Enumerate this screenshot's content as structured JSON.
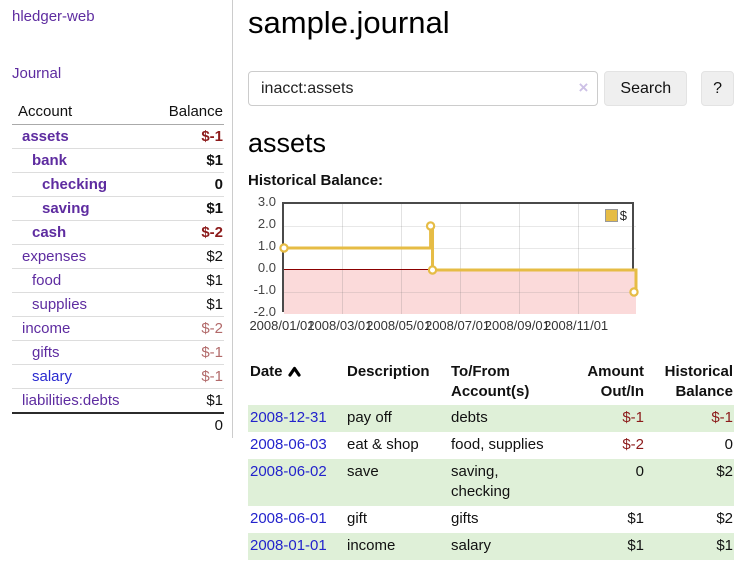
{
  "app": {
    "title": "hledger-web"
  },
  "sidebar": {
    "nav": {
      "journal_label": "Journal"
    },
    "accounts_table": {
      "headers": {
        "account": "Account",
        "balance": "Balance"
      },
      "rows": [
        {
          "name": "assets",
          "depth": 1,
          "bold": true,
          "balance": "$-1",
          "neg": "strong"
        },
        {
          "name": "bank",
          "depth": 2,
          "bold": true,
          "balance": "$1"
        },
        {
          "name": "checking",
          "depth": 3,
          "bold": true,
          "balance": "0"
        },
        {
          "name": "saving",
          "depth": 3,
          "bold": true,
          "balance": "$1"
        },
        {
          "name": "cash",
          "depth": 2,
          "bold": true,
          "balance": "$-2",
          "neg": "strong"
        },
        {
          "name": "expenses",
          "depth": 1,
          "bold": false,
          "balance": "$2"
        },
        {
          "name": "food",
          "depth": 2,
          "bold": false,
          "balance": "$1"
        },
        {
          "name": "supplies",
          "depth": 2,
          "bold": false,
          "balance": "$1"
        },
        {
          "name": "income",
          "depth": 1,
          "bold": false,
          "balance": "$-2",
          "neg": "soft"
        },
        {
          "name": "gifts",
          "depth": 2,
          "bold": false,
          "balance": "$-1",
          "neg": "soft"
        },
        {
          "name": "salary",
          "depth": 2,
          "bold": false,
          "balance": "$-1",
          "neg": "soft",
          "link_color": "blue"
        },
        {
          "name": "liabilities:debts",
          "depth": 1,
          "bold": false,
          "balance": "$1"
        }
      ],
      "total": "0"
    }
  },
  "header": {
    "title": "sample.journal"
  },
  "search": {
    "value": "inacct:assets",
    "clear_icon": "×",
    "button_label": "Search",
    "help_label": "?"
  },
  "account_page": {
    "title": "assets",
    "chart_label": "Historical Balance:"
  },
  "chart_data": {
    "type": "line",
    "step": true,
    "title": "Historical Balance:",
    "series": [
      {
        "name": "$",
        "points": [
          [
            "2008-01-01",
            1
          ],
          [
            "2008-06-01",
            2
          ],
          [
            "2008-06-03",
            0
          ],
          [
            "2008-12-31",
            -1
          ]
        ]
      }
    ],
    "x_range": [
      "2008-01-01",
      "2008-12-31"
    ],
    "x_ticks": [
      "2008/01/01",
      "2008/03/01",
      "2008/05/01",
      "2008/07/01",
      "2008/09/01",
      "2008/11/01"
    ],
    "y_ticks": [
      "3.0",
      "2.0",
      "1.0",
      "0.0",
      "-1.0",
      "-2.0"
    ],
    "ylim": [
      -2,
      3
    ],
    "grid": true,
    "legend_position": "top-right",
    "colors": {
      "line": "#e6bc45",
      "marker_fill": "#ffffff",
      "negative_fill": "#fbdada",
      "zero_line": "#8b0000"
    }
  },
  "transactions": {
    "columns": [
      {
        "label1": "Date",
        "sortable": true
      },
      {
        "label1": "Description"
      },
      {
        "label1": "To/From",
        "label2": "Account(s)"
      },
      {
        "label1": "Amount",
        "label2": "Out/In",
        "align": "right"
      },
      {
        "label1": "Historical",
        "label2": "Balance",
        "align": "right"
      }
    ],
    "rows": [
      {
        "date": "2008-12-31",
        "description": "pay off",
        "accounts": "debts",
        "amount": "$-1",
        "balance": "$-1"
      },
      {
        "date": "2008-06-03",
        "description": "eat & shop",
        "accounts": "food, supplies",
        "amount": "$-2",
        "balance": "0"
      },
      {
        "date": "2008-06-02",
        "description": "save",
        "accounts": "saving, checking",
        "amount": "0",
        "balance": "$2"
      },
      {
        "date": "2008-06-01",
        "description": "gift",
        "accounts": "gifts",
        "amount": "$1",
        "balance": "$2"
      },
      {
        "date": "2008-01-01",
        "description": "income",
        "accounts": "salary",
        "amount": "$1",
        "balance": "$1"
      }
    ]
  },
  "colors": {
    "link_purple": "#5e2ca0",
    "link_blue": "#2323cc",
    "negative_strong": "#8c1a1a",
    "negative_soft": "#b26a6a",
    "row_stripe_green": "#dff0d8",
    "chart_line": "#e6bc45",
    "chart_negative_bg": "#fbdada",
    "chart_zero_line": "#8b0000"
  }
}
